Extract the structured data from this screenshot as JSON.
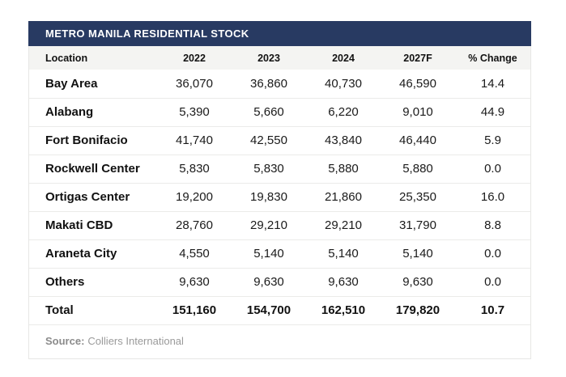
{
  "table": {
    "title": "METRO MANILA RESIDENTIAL STOCK",
    "columns": [
      "Location",
      "2022",
      "2023",
      "2024",
      "2027F",
      "% Change"
    ],
    "rows": [
      {
        "location": "Bay Area",
        "values": [
          "36,070",
          "36,860",
          "40,730",
          "46,590",
          "14.4"
        ]
      },
      {
        "location": "Alabang",
        "values": [
          "5,390",
          "5,660",
          "6,220",
          "9,010",
          "44.9"
        ]
      },
      {
        "location": "Fort Bonifacio",
        "values": [
          "41,740",
          "42,550",
          "43,840",
          "46,440",
          "5.9"
        ]
      },
      {
        "location": "Rockwell Center",
        "values": [
          "5,830",
          "5,830",
          "5,880",
          "5,880",
          "0.0"
        ]
      },
      {
        "location": "Ortigas Center",
        "values": [
          "19,200",
          "19,830",
          "21,860",
          "25,350",
          "16.0"
        ]
      },
      {
        "location": "Makati CBD",
        "values": [
          "28,760",
          "29,210",
          "29,210",
          "31,790",
          "8.8"
        ]
      },
      {
        "location": "Araneta City",
        "values": [
          "4,550",
          "5,140",
          "5,140",
          "5,140",
          "0.0"
        ]
      },
      {
        "location": "Others",
        "values": [
          "9,630",
          "9,630",
          "9,630",
          "9,630",
          "0.0"
        ]
      }
    ],
    "total": {
      "location": "Total",
      "values": [
        "151,160",
        "154,700",
        "162,510",
        "179,820",
        "10.7"
      ]
    },
    "source_label": "Source:",
    "source_text": "Colliers International"
  },
  "colors": {
    "title_bar_bg": "#283a62",
    "title_text": "#ffffff",
    "header_row_bg": "#f4f4f2",
    "row_border": "#ebebe9",
    "body_text": "#1a1a1a",
    "source_text": "#9a9a9a"
  },
  "chart_data": {
    "type": "table",
    "title": "METRO MANILA RESIDENTIAL STOCK",
    "columns": [
      "Location",
      "2022",
      "2023",
      "2024",
      "2027F",
      "% Change"
    ],
    "rows": [
      [
        "Bay Area",
        36070,
        36860,
        40730,
        46590,
        14.4
      ],
      [
        "Alabang",
        5390,
        5660,
        6220,
        9010,
        44.9
      ],
      [
        "Fort Bonifacio",
        41740,
        42550,
        43840,
        46440,
        5.9
      ],
      [
        "Rockwell Center",
        5830,
        5830,
        5880,
        5880,
        0.0
      ],
      [
        "Ortigas Center",
        19200,
        19830,
        21860,
        25350,
        16.0
      ],
      [
        "Makati CBD",
        28760,
        29210,
        29210,
        31790,
        8.8
      ],
      [
        "Araneta City",
        4550,
        5140,
        5140,
        5140,
        0.0
      ],
      [
        "Others",
        9630,
        9630,
        9630,
        9630,
        0.0
      ],
      [
        "Total",
        151160,
        154700,
        162510,
        179820,
        10.7
      ]
    ],
    "source": "Colliers International"
  }
}
